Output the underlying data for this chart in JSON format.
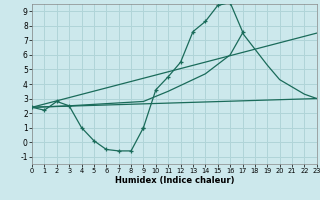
{
  "xlabel": "Humidex (Indice chaleur)",
  "background_color": "#cce8ec",
  "grid_color": "#b0d4d8",
  "line_color": "#1a6b5a",
  "xlim": [
    0,
    23
  ],
  "ylim": [
    -1.5,
    9.5
  ],
  "xticks": [
    0,
    1,
    2,
    3,
    4,
    5,
    6,
    7,
    8,
    9,
    10,
    11,
    12,
    13,
    14,
    15,
    16,
    17,
    18,
    19,
    20,
    21,
    22,
    23
  ],
  "yticks": [
    -1,
    0,
    1,
    2,
    3,
    4,
    5,
    6,
    7,
    8,
    9
  ],
  "curves": [
    {
      "x": [
        0,
        1,
        2,
        3,
        4,
        5,
        6,
        7,
        8,
        9,
        10,
        11,
        12,
        13,
        14,
        15,
        16,
        17,
        18,
        19,
        20,
        21,
        22,
        23
      ],
      "y": [
        2.4,
        2.2,
        2.8,
        2.5,
        1.0,
        0.1,
        -0.5,
        -0.6,
        -0.6,
        1.0,
        null,
        null,
        null,
        null,
        null,
        null,
        null,
        null,
        null,
        null,
        null,
        null,
        null,
        null
      ],
      "marker": "+"
    },
    {
      "x": [
        9,
        10,
        11,
        12,
        13,
        14,
        15,
        16,
        17,
        18,
        19,
        20,
        21,
        22,
        23
      ],
      "y": [
        1.0,
        3.6,
        4.5,
        5.5,
        7.6,
        8.3,
        9.4,
        9.6,
        7.6,
        null,
        null,
        null,
        null,
        null,
        null
      ],
      "marker": "+"
    },
    {
      "x": [
        0,
        23
      ],
      "y": [
        2.4,
        3.0
      ],
      "marker": null
    },
    {
      "x": [
        0,
        23
      ],
      "y": [
        2.4,
        7.5
      ],
      "marker": null
    },
    {
      "x": [
        0,
        3,
        9,
        11,
        13,
        14,
        16,
        17,
        19,
        20,
        21,
        22,
        23
      ],
      "y": [
        2.4,
        2.5,
        2.8,
        3.5,
        4.3,
        4.7,
        6.0,
        7.5,
        5.3,
        4.3,
        3.8,
        3.3,
        3.0
      ],
      "marker": null
    }
  ]
}
